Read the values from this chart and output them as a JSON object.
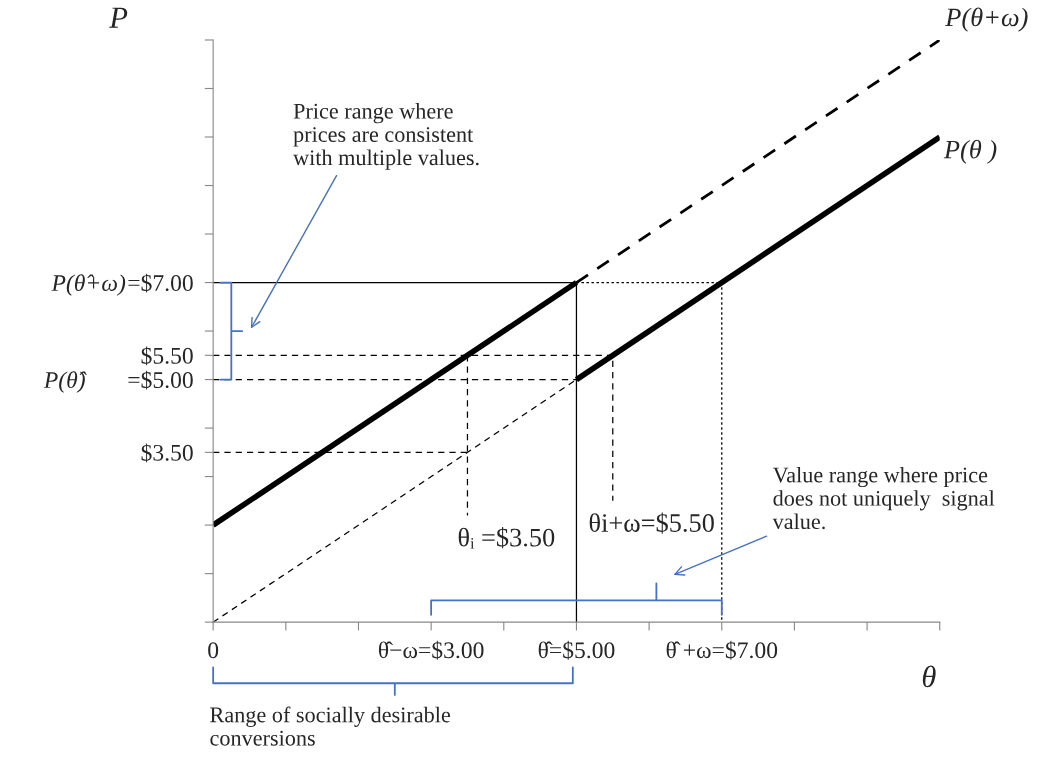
{
  "chart_data": {
    "type": "line",
    "xlabel": "θ",
    "ylabel": "P",
    "xlim": [
      0,
      10
    ],
    "ylim": [
      0,
      12
    ],
    "xticks": [
      0,
      {
        "value": 1,
        "label": null
      },
      {
        "value": 2,
        "label": null
      },
      {
        "value": 3,
        "label": "θ̂−ω=$3.00"
      },
      {
        "value": 4,
        "label": null
      },
      {
        "value": 5,
        "label": "θ̂=$5.00"
      },
      {
        "value": 6,
        "label": null
      },
      {
        "value": 7,
        "label": "θ̂ +ω=$7.00"
      },
      {
        "value": 8,
        "label": null
      },
      {
        "value": 9,
        "label": null
      },
      {
        "value": 10,
        "label": null
      }
    ],
    "yticks": [
      {
        "value": 0,
        "label": null
      },
      {
        "value": 1,
        "label": null
      },
      {
        "value": 2,
        "label": null
      },
      {
        "value": 3,
        "label": null
      },
      {
        "value": 3.5,
        "label": "$3.50"
      },
      {
        "value": 4,
        "label": null
      },
      {
        "value": 5,
        "label": "=$5.00"
      },
      {
        "value": 5.5,
        "label": "$5.50"
      },
      {
        "value": 6,
        "label": null
      },
      {
        "value": 7,
        "label": "=$7.00"
      },
      {
        "value": 8,
        "label": null
      },
      {
        "value": 9,
        "label": null
      },
      {
        "value": 10,
        "label": null
      },
      {
        "value": 11,
        "label": null
      },
      {
        "value": 12,
        "label": null
      }
    ],
    "series": [
      {
        "name": "P(θ+ω)",
        "color": "#000000",
        "line_style": "dashed",
        "x": [
          5,
          10
        ],
        "values": [
          7,
          12
        ]
      },
      {
        "color": "#000000",
        "line_style": "solid",
        "x": [
          0,
          5
        ],
        "values": [
          2,
          7
        ]
      },
      {
        "name": "P(θ )",
        "color": "#000000",
        "line_style": "solid",
        "x": [
          5,
          10
        ],
        "values": [
          5,
          10
        ]
      },
      {
        "color": "#000000",
        "line_style": "dashed",
        "x": [
          0,
          5
        ],
        "values": [
          0,
          5
        ]
      },
      {
        "color": "#000000",
        "line_style": "solid",
        "x": [
          0,
          5,
          5
        ],
        "values": [
          7,
          7,
          0
        ]
      },
      {
        "color": "#000000",
        "line_style": "dotted",
        "x": [
          5,
          7,
          7
        ],
        "values": [
          7,
          7,
          0
        ]
      },
      {
        "color": "#000000",
        "line_style": "dashed",
        "x": [
          0,
          5.5,
          5.5
        ],
        "values": [
          5.5,
          5.5,
          2.5
        ]
      },
      {
        "color": "#000000",
        "line_style": "dashed",
        "x": [
          0,
          5
        ],
        "values": [
          5,
          5
        ]
      },
      {
        "color": "#000000",
        "line_style": "dashed",
        "x": [
          0,
          3.5
        ],
        "values": [
          3.5,
          3.5
        ]
      },
      {
        "color": "#000000",
        "line_style": "dashed",
        "x": [
          3.5,
          3.5
        ],
        "values": [
          5.5,
          2.2
        ]
      }
    ],
    "annotations": [
      "Price range where\nprices are consistent\nwith multiple values.",
      "Value range where price\ndoes not uniquely  signal\nvalue.",
      "Range of socially desirable\nconversions",
      "P(θ̂+ω)",
      "P(θ̂)",
      {
        "text": "θᵢ =$3.50",
        "x": 3.5,
        "y": 2.2
      },
      {
        "text": "θi+ω=$5.50",
        "x": 5.5,
        "y": 2.5
      }
    ],
    "grid": false
  }
}
